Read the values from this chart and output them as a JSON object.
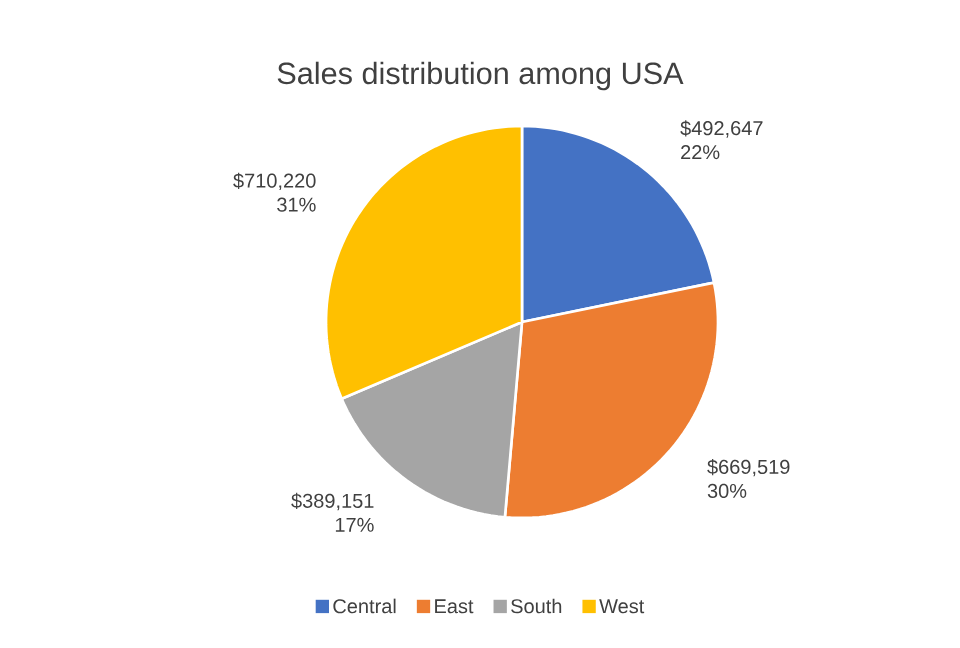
{
  "chart_data": {
    "type": "pie",
    "title": "Sales distribution among USA",
    "categories": [
      "Central",
      "East",
      "South",
      "West"
    ],
    "values": [
      492647,
      669519,
      389151,
      710220
    ],
    "colors": [
      "#4472c4",
      "#ed7d31",
      "#a5a5a5",
      "#ffc000"
    ],
    "value_labels": [
      "$492,647 22%",
      "$669,519 30%",
      "$389,151 17%",
      "$710,220 31%"
    ],
    "legend": "bottom"
  }
}
